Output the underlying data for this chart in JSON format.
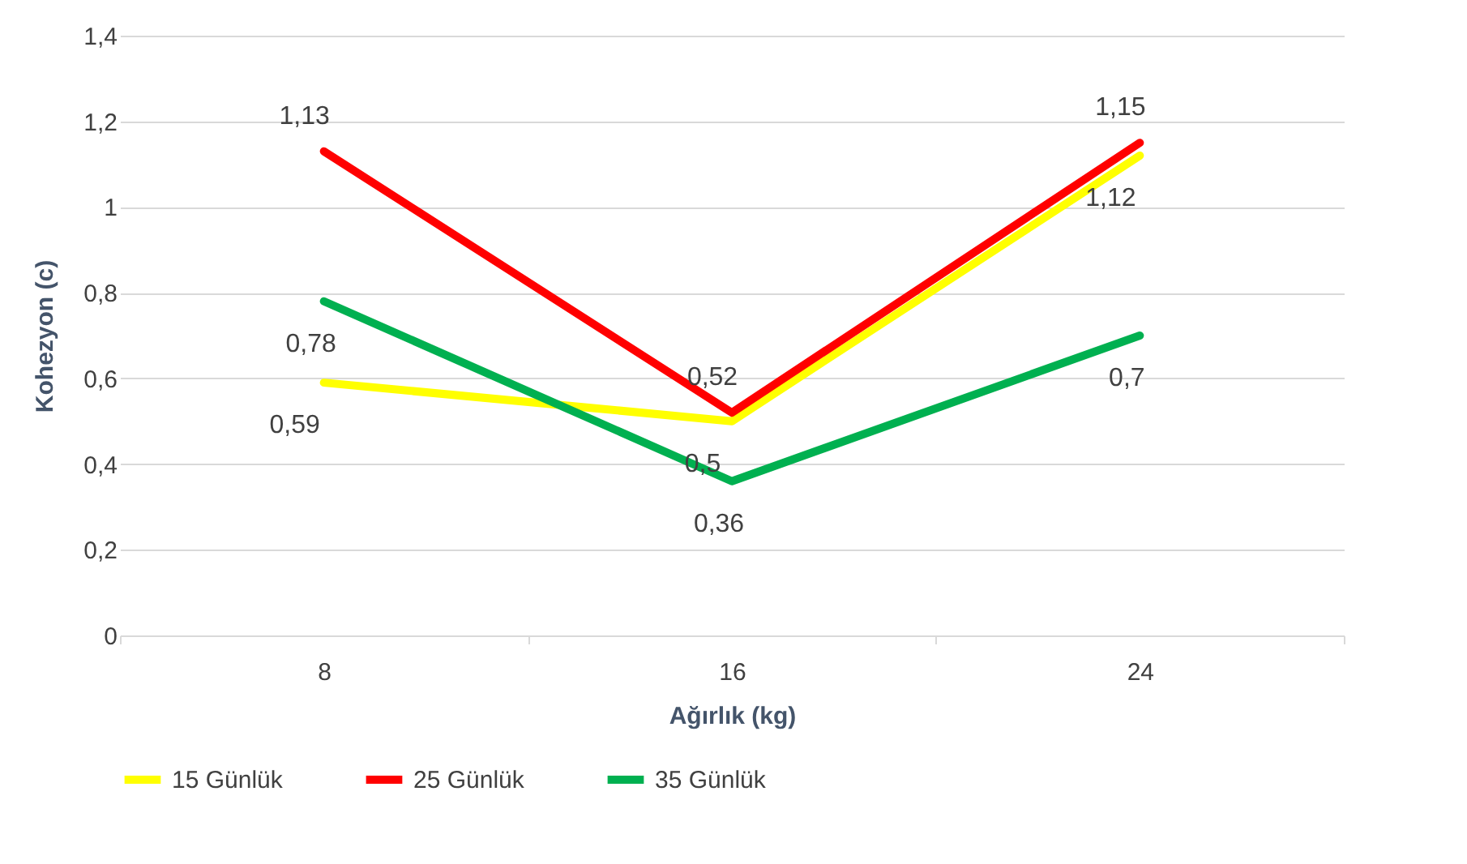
{
  "chart_data": {
    "type": "line",
    "xlabel": "Ağırlık (kg)",
    "ylabel": "Kohezyon (c)",
    "categories": [
      "8",
      "16",
      "24"
    ],
    "series": [
      {
        "name": "15 Günlük",
        "color": "#ffff00",
        "values": [
          0.59,
          0.5,
          1.12
        ],
        "value_labels": [
          "0,59",
          "0,5",
          "1,12"
        ]
      },
      {
        "name": "25 Günlük",
        "color": "#ff0000",
        "values": [
          1.13,
          0.52,
          1.15
        ],
        "value_labels": [
          "1,13",
          "0,52",
          "1,15"
        ]
      },
      {
        "name": "35 Günlük",
        "color": "#00b050",
        "values": [
          0.78,
          0.36,
          0.7
        ],
        "value_labels": [
          "0,78",
          "0,36",
          "0,7"
        ]
      }
    ],
    "ylim": [
      0,
      1.4
    ],
    "yticks": [
      0,
      {
        "value": 0.2,
        "label": "0,2"
      },
      {
        "value": 0.4,
        "label": "0,4"
      },
      {
        "value": 0.6,
        "label": "0,6"
      },
      {
        "value": 0.8,
        "label": "0,8"
      },
      1,
      {
        "value": 1.2,
        "label": "1,2"
      },
      {
        "value": 1.4,
        "label": "1,4"
      }
    ],
    "grid": "y",
    "legend": "bottom",
    "marker": "none",
    "line_style": "solid"
  }
}
